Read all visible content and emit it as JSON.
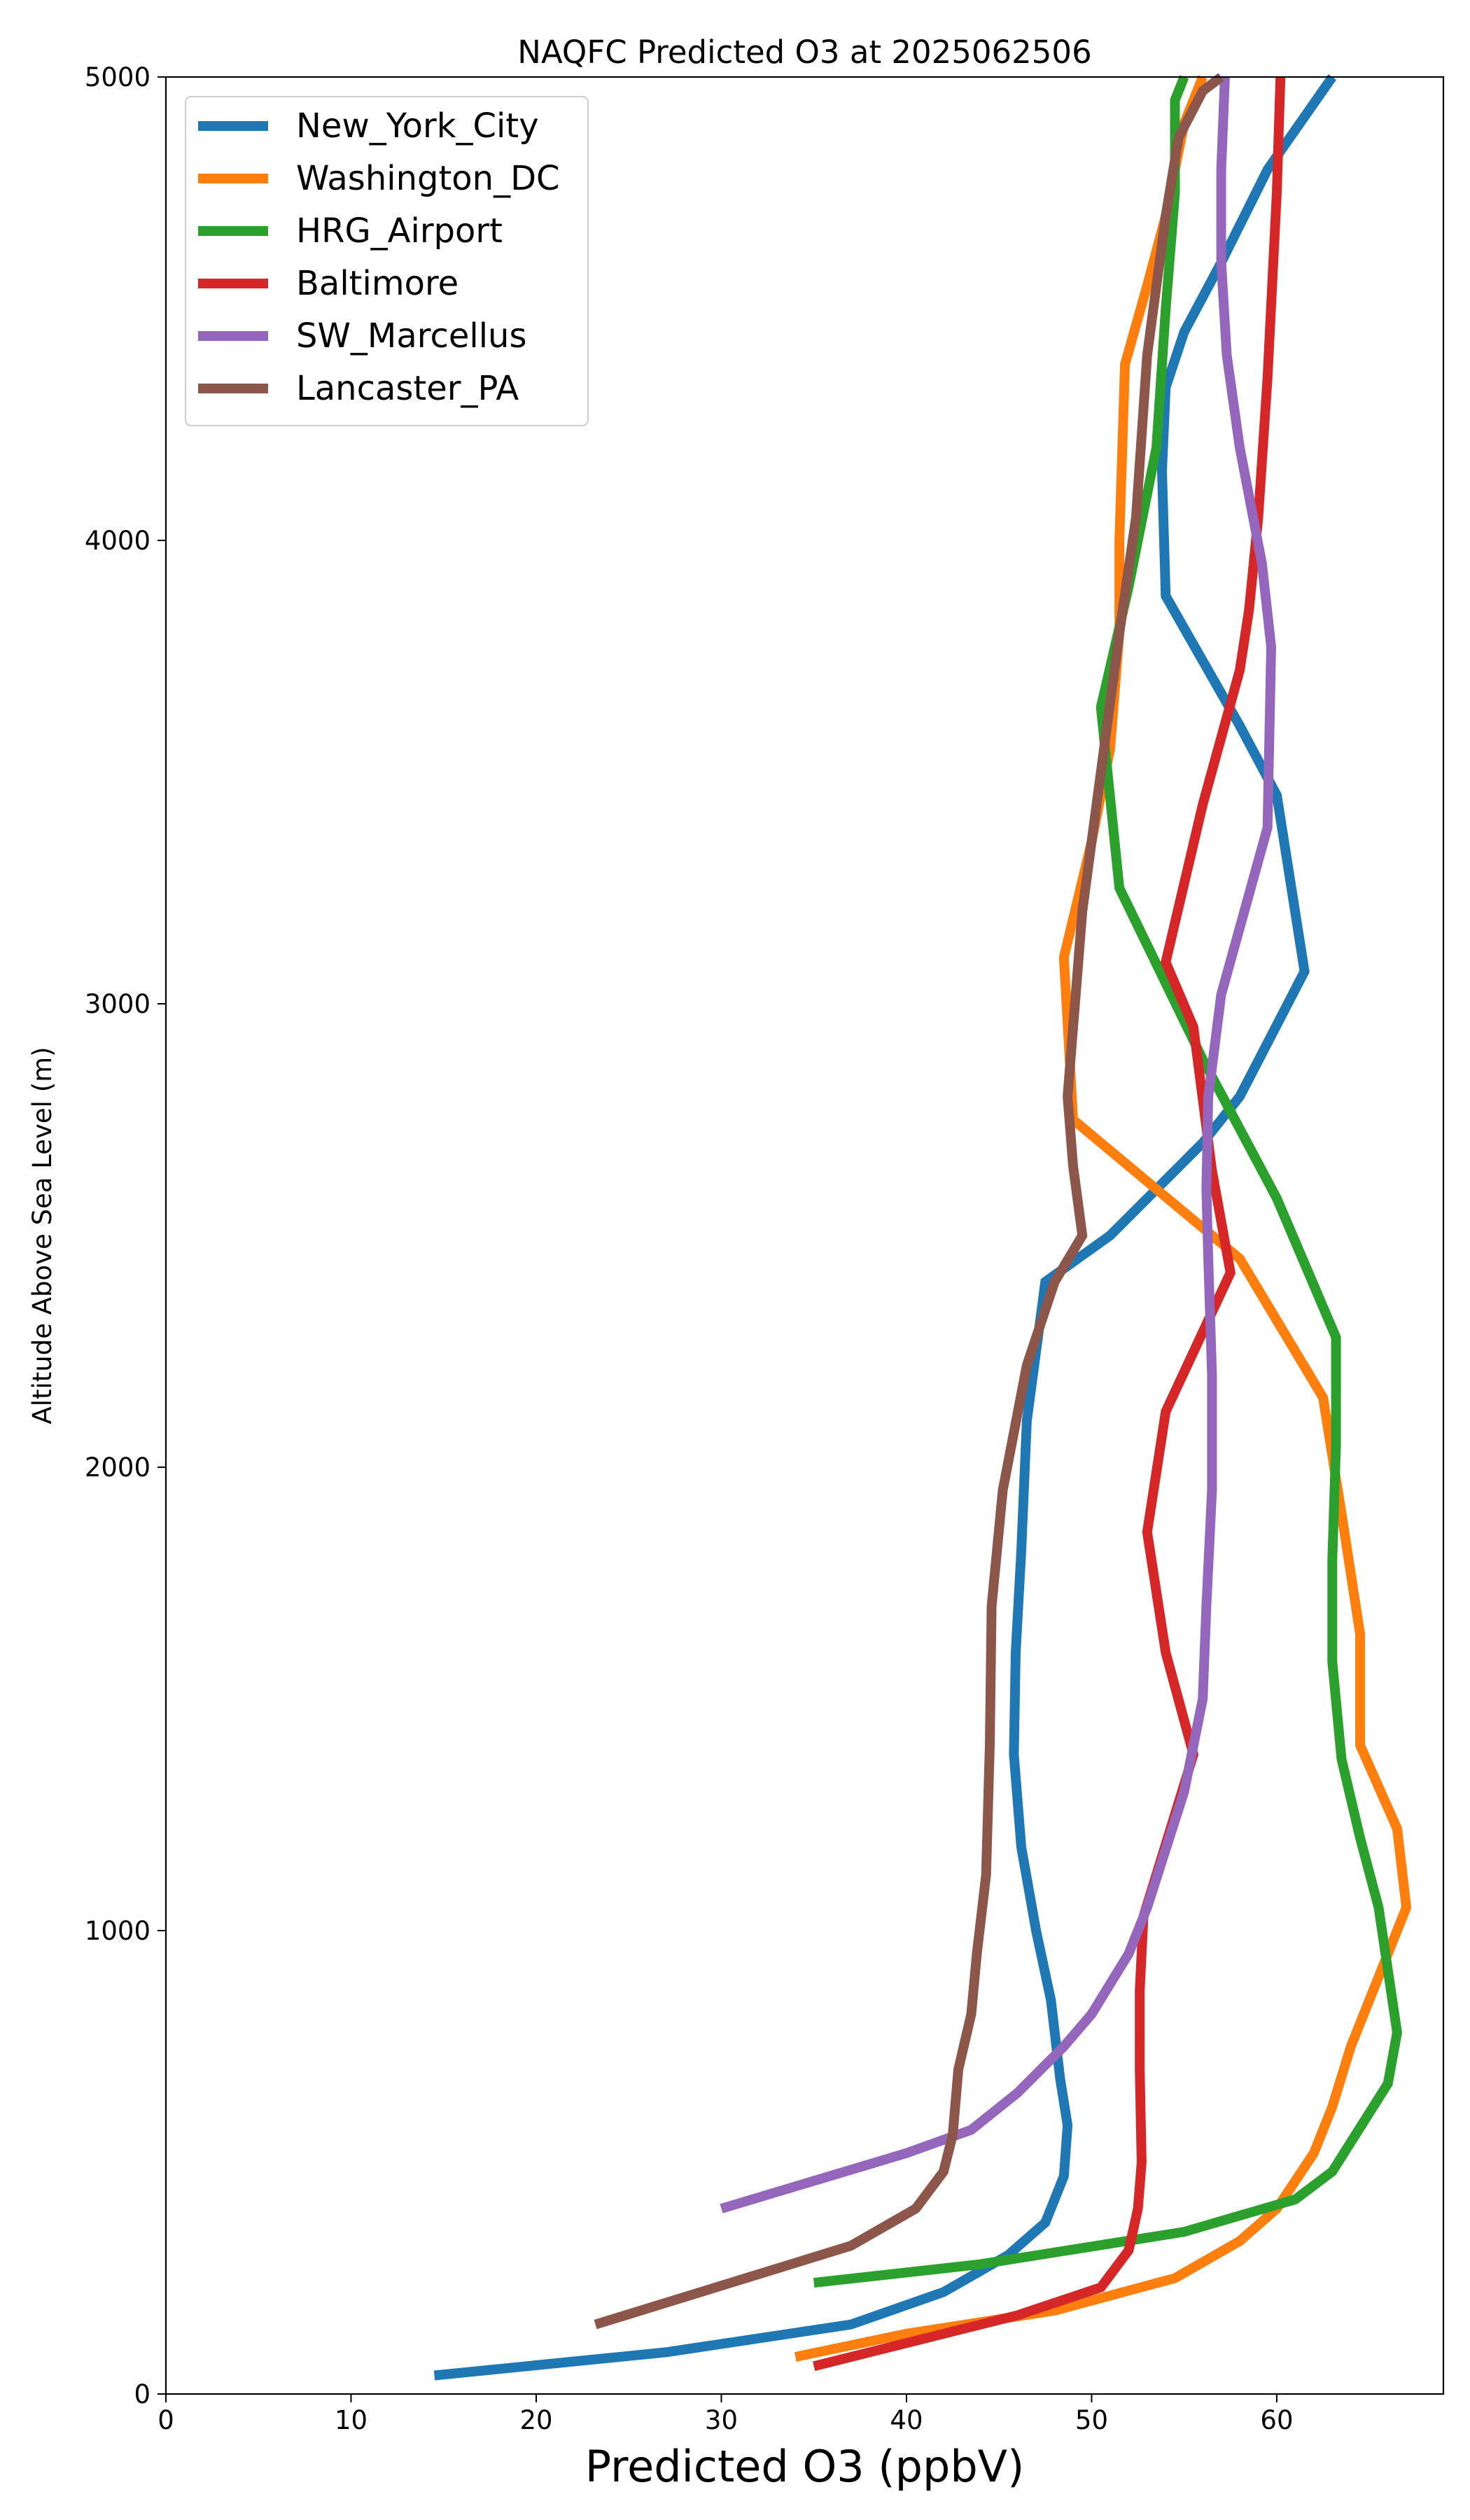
{
  "chart_data": {
    "type": "line",
    "title": "NAQFC Predicted O3 at 2025062506",
    "xlabel": "Predicted O3 (ppbV)",
    "ylabel": "Altitude Above Sea Level (m)",
    "xlim": [
      0,
      69
    ],
    "ylim": [
      0,
      5000
    ],
    "xticks": [
      "0",
      "10",
      "20",
      "30",
      "40",
      "50",
      "60"
    ],
    "yticks": [
      "0",
      "1000",
      "2000",
      "3000",
      "4000",
      "5000"
    ],
    "grid": false,
    "legend_position": "top-left",
    "series": [
      {
        "name": "New_York_City",
        "color": "#1f77b4",
        "points": [
          [
            14.5,
            40
          ],
          [
            27,
            90
          ],
          [
            37,
            150
          ],
          [
            42,
            220
          ],
          [
            45.5,
            300
          ],
          [
            47.5,
            370
          ],
          [
            48.5,
            470
          ],
          [
            48.7,
            580
          ],
          [
            48.3,
            680
          ],
          [
            47.8,
            850
          ],
          [
            47,
            1000
          ],
          [
            46.2,
            1180
          ],
          [
            45.8,
            1380
          ],
          [
            45.9,
            1600
          ],
          [
            46.2,
            1820
          ],
          [
            46.5,
            2100
          ],
          [
            47.5,
            2400
          ],
          [
            51,
            2500
          ],
          [
            56,
            2700
          ],
          [
            58,
            2800
          ],
          [
            61.5,
            3070
          ],
          [
            60,
            3450
          ],
          [
            58,
            3600
          ],
          [
            54,
            3880
          ],
          [
            53.8,
            4150
          ],
          [
            54,
            4330
          ],
          [
            55,
            4450
          ],
          [
            57,
            4600
          ],
          [
            59.5,
            4800
          ],
          [
            63,
            5000
          ]
        ]
      },
      {
        "name": "Washington_DC",
        "color": "#ff7f0e",
        "points": [
          [
            34,
            80
          ],
          [
            40,
            130
          ],
          [
            48,
            180
          ],
          [
            54.5,
            250
          ],
          [
            58,
            330
          ],
          [
            60,
            400
          ],
          [
            62,
            520
          ],
          [
            63,
            620
          ],
          [
            64,
            750
          ],
          [
            67,
            1050
          ],
          [
            66.5,
            1220
          ],
          [
            64.5,
            1400
          ],
          [
            64.5,
            1640
          ],
          [
            63.5,
            1900
          ],
          [
            62.5,
            2150
          ],
          [
            58,
            2450
          ],
          [
            55,
            2550
          ],
          [
            49,
            2750
          ],
          [
            48.5,
            3100
          ],
          [
            50,
            3350
          ],
          [
            51,
            3550
          ],
          [
            51.5,
            3800
          ],
          [
            51.5,
            4000
          ],
          [
            51.8,
            4380
          ],
          [
            53,
            4550
          ],
          [
            54,
            4700
          ],
          [
            55,
            4900
          ],
          [
            56,
            5000
          ]
        ]
      },
      {
        "name": "HRG_Airport",
        "color": "#2ca02c",
        "points": [
          [
            35,
            240
          ],
          [
            44,
            280
          ],
          [
            55,
            350
          ],
          [
            61,
            420
          ],
          [
            63,
            480
          ],
          [
            66,
            670
          ],
          [
            66.5,
            780
          ],
          [
            65.5,
            1050
          ],
          [
            64.5,
            1200
          ],
          [
            63.5,
            1370
          ],
          [
            63,
            1580
          ],
          [
            63,
            1800
          ],
          [
            63.2,
            2050
          ],
          [
            63.2,
            2280
          ],
          [
            60,
            2580
          ],
          [
            56,
            2880
          ],
          [
            51.5,
            3250
          ],
          [
            50.5,
            3640
          ],
          [
            52,
            3900
          ],
          [
            53.5,
            4200
          ],
          [
            54,
            4500
          ],
          [
            54.5,
            4750
          ],
          [
            54.5,
            4950
          ],
          [
            55,
            5000
          ]
        ]
      },
      {
        "name": "Baltimore",
        "color": "#d62728",
        "points": [
          [
            35,
            60
          ],
          [
            40,
            110
          ],
          [
            46,
            170
          ],
          [
            50.5,
            230
          ],
          [
            52,
            310
          ],
          [
            52.5,
            400
          ],
          [
            52.7,
            500
          ],
          [
            52.6,
            700
          ],
          [
            52.6,
            870
          ],
          [
            52.8,
            1030
          ],
          [
            55.5,
            1380
          ],
          [
            54,
            1600
          ],
          [
            53,
            1860
          ],
          [
            54,
            2120
          ],
          [
            57.5,
            2420
          ],
          [
            56.5,
            2640
          ],
          [
            55.5,
            2950
          ],
          [
            54,
            3090
          ],
          [
            56,
            3430
          ],
          [
            58,
            3720
          ],
          [
            58.5,
            3850
          ],
          [
            59,
            4050
          ],
          [
            59.5,
            4350
          ],
          [
            60,
            4750
          ],
          [
            60.2,
            5000
          ]
        ]
      },
      {
        "name": "SW_Marcellus",
        "color": "#9467bd",
        "points": [
          [
            30,
            400
          ],
          [
            40,
            520
          ],
          [
            43.5,
            570
          ],
          [
            46,
            650
          ],
          [
            48.5,
            750
          ],
          [
            50,
            820
          ],
          [
            52,
            950
          ],
          [
            53,
            1050
          ],
          [
            55,
            1300
          ],
          [
            56,
            1500
          ],
          [
            56.2,
            1700
          ],
          [
            56.5,
            1950
          ],
          [
            56.5,
            2200
          ],
          [
            56.3,
            2450
          ],
          [
            56.2,
            2600
          ],
          [
            56.3,
            2800
          ],
          [
            57,
            3020
          ],
          [
            59.5,
            3380
          ],
          [
            59.7,
            3770
          ],
          [
            59.2,
            3950
          ],
          [
            58,
            4200
          ],
          [
            57.3,
            4400
          ],
          [
            57,
            4600
          ],
          [
            57,
            4800
          ],
          [
            57.2,
            5000
          ]
        ]
      },
      {
        "name": "Lancaster_PA",
        "color": "#8c564b",
        "points": [
          [
            23.2,
            150
          ],
          [
            37,
            320
          ],
          [
            40.5,
            400
          ],
          [
            42,
            480
          ],
          [
            42.5,
            560
          ],
          [
            42.8,
            700
          ],
          [
            43.5,
            820
          ],
          [
            43.8,
            950
          ],
          [
            44.3,
            1120
          ],
          [
            44.5,
            1400
          ],
          [
            44.6,
            1700
          ],
          [
            45.2,
            1950
          ],
          [
            46.5,
            2220
          ],
          [
            48,
            2400
          ],
          [
            49.5,
            2500
          ],
          [
            49,
            2650
          ],
          [
            48.7,
            2800
          ],
          [
            49.1,
            3000
          ],
          [
            49.5,
            3200
          ],
          [
            50.5,
            3500
          ],
          [
            51.5,
            3800
          ],
          [
            52.4,
            4050
          ],
          [
            53,
            4400
          ],
          [
            54,
            4700
          ],
          [
            54.7,
            4870
          ],
          [
            56,
            4970
          ],
          [
            57,
            5000
          ]
        ]
      }
    ]
  }
}
